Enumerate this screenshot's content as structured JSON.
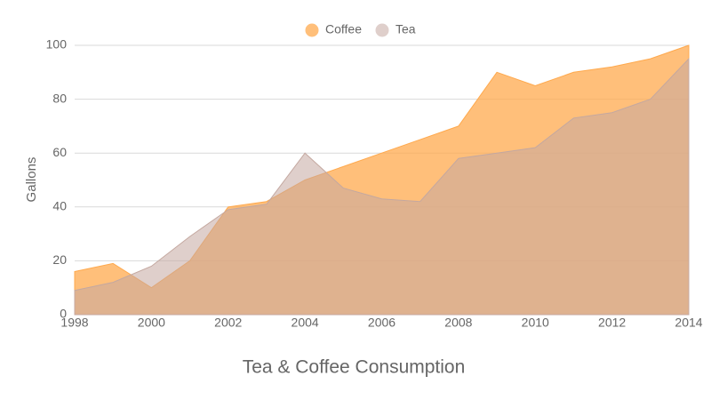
{
  "chart_data": {
    "type": "area",
    "title": "Tea & Coffee Consumption",
    "y_label": "Gallons",
    "x": [
      1998,
      1999,
      2000,
      2001,
      2002,
      2003,
      2004,
      2005,
      2006,
      2007,
      2008,
      2009,
      2010,
      2011,
      2012,
      2013,
      2014
    ],
    "series": [
      {
        "name": "Coffee",
        "color": "#ffa94d",
        "values": [
          16,
          19,
          10,
          20,
          40,
          42,
          50,
          55,
          60,
          65,
          70,
          90,
          85,
          90,
          92,
          95,
          100
        ]
      },
      {
        "name": "Tea",
        "color": "#c4a8a0",
        "values": [
          9,
          12,
          18,
          29,
          39,
          41,
          60,
          47,
          43,
          42,
          58,
          60,
          62,
          73,
          75,
          80,
          95
        ]
      }
    ],
    "xlim": [
      1998,
      2014
    ],
    "xticks": [
      1998,
      2000,
      2002,
      2004,
      2006,
      2008,
      2010,
      2012,
      2014
    ],
    "ylim": [
      0,
      100
    ],
    "yticks": [
      0,
      20,
      40,
      60,
      80,
      100
    ],
    "grid": true,
    "legend": "top"
  }
}
